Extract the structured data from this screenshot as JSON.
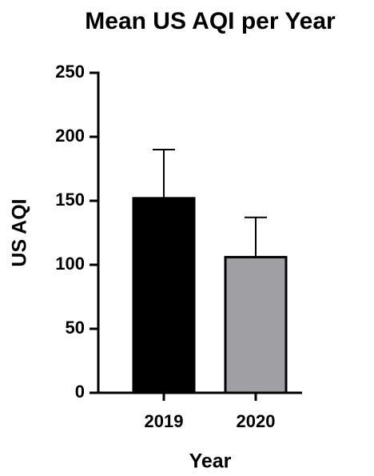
{
  "chart_data": {
    "type": "bar",
    "title": "Mean US AQI per Year",
    "x_label": "Year",
    "y_label": "US AQI",
    "categories": [
      "2019",
      "2020"
    ],
    "values": [
      152,
      106
    ],
    "errors": [
      38,
      31
    ],
    "colors": [
      "#000000",
      "#a0a0a4"
    ],
    "ylim": [
      0,
      250
    ],
    "yticks": [
      0,
      50,
      100,
      150,
      200,
      250
    ],
    "grid": false
  }
}
